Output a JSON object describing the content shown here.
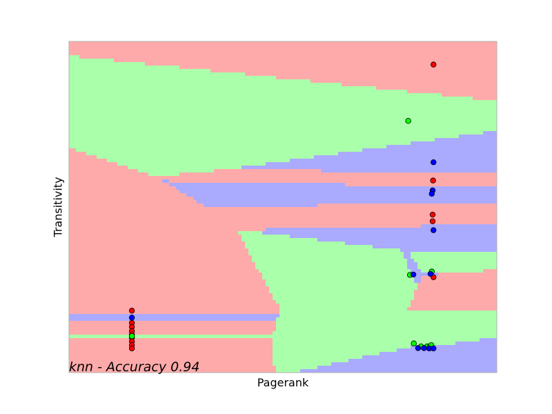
{
  "chart_data": {
    "type": "scatter",
    "xlabel": "Pagerank",
    "ylabel": "Transitivity",
    "annotation": "knn - Accuracy 0.94",
    "ticks": "none",
    "grid": false,
    "legend": "none",
    "xlim": [
      0,
      1
    ],
    "ylim": [
      0,
      1
    ],
    "class_colors": {
      "red": {
        "point": "#ff0000",
        "region": "#ffaaaa"
      },
      "green": {
        "point": "#00ff00",
        "region": "#aaffaa"
      },
      "blue": {
        "point": "#0000ff",
        "region": "#aaaaff"
      }
    },
    "series": [
      {
        "class": "red",
        "points": [
          [
            0.852,
            0.93
          ],
          [
            0.851,
            0.58
          ],
          [
            0.85,
            0.477
          ],
          [
            0.85,
            0.457
          ],
          [
            0.852,
            0.288
          ],
          [
            0.147,
            0.187
          ],
          [
            0.147,
            0.15
          ],
          [
            0.147,
            0.138
          ],
          [
            0.147,
            0.125
          ],
          [
            0.147,
            0.115
          ],
          [
            0.147,
            0.105
          ],
          [
            0.147,
            0.094
          ],
          [
            0.147,
            0.083
          ],
          [
            0.147,
            0.073
          ]
        ]
      },
      {
        "class": "green",
        "points": [
          [
            0.793,
            0.76
          ],
          [
            0.797,
            0.295
          ],
          [
            0.848,
            0.305
          ],
          [
            0.147,
            0.11
          ],
          [
            0.806,
            0.088
          ],
          [
            0.823,
            0.079
          ],
          [
            0.837,
            0.079
          ],
          [
            0.844,
            0.08
          ],
          [
            0.847,
            0.083
          ]
        ]
      },
      {
        "class": "blue",
        "points": [
          [
            0.852,
            0.635
          ],
          [
            0.85,
            0.55
          ],
          [
            0.848,
            0.54
          ],
          [
            0.852,
            0.43
          ],
          [
            0.805,
            0.296
          ],
          [
            0.845,
            0.298
          ],
          [
            0.147,
            0.166
          ],
          [
            0.816,
            0.074
          ],
          [
            0.83,
            0.074
          ],
          [
            0.842,
            0.073
          ],
          [
            0.852,
            0.073
          ]
        ]
      }
    ]
  }
}
